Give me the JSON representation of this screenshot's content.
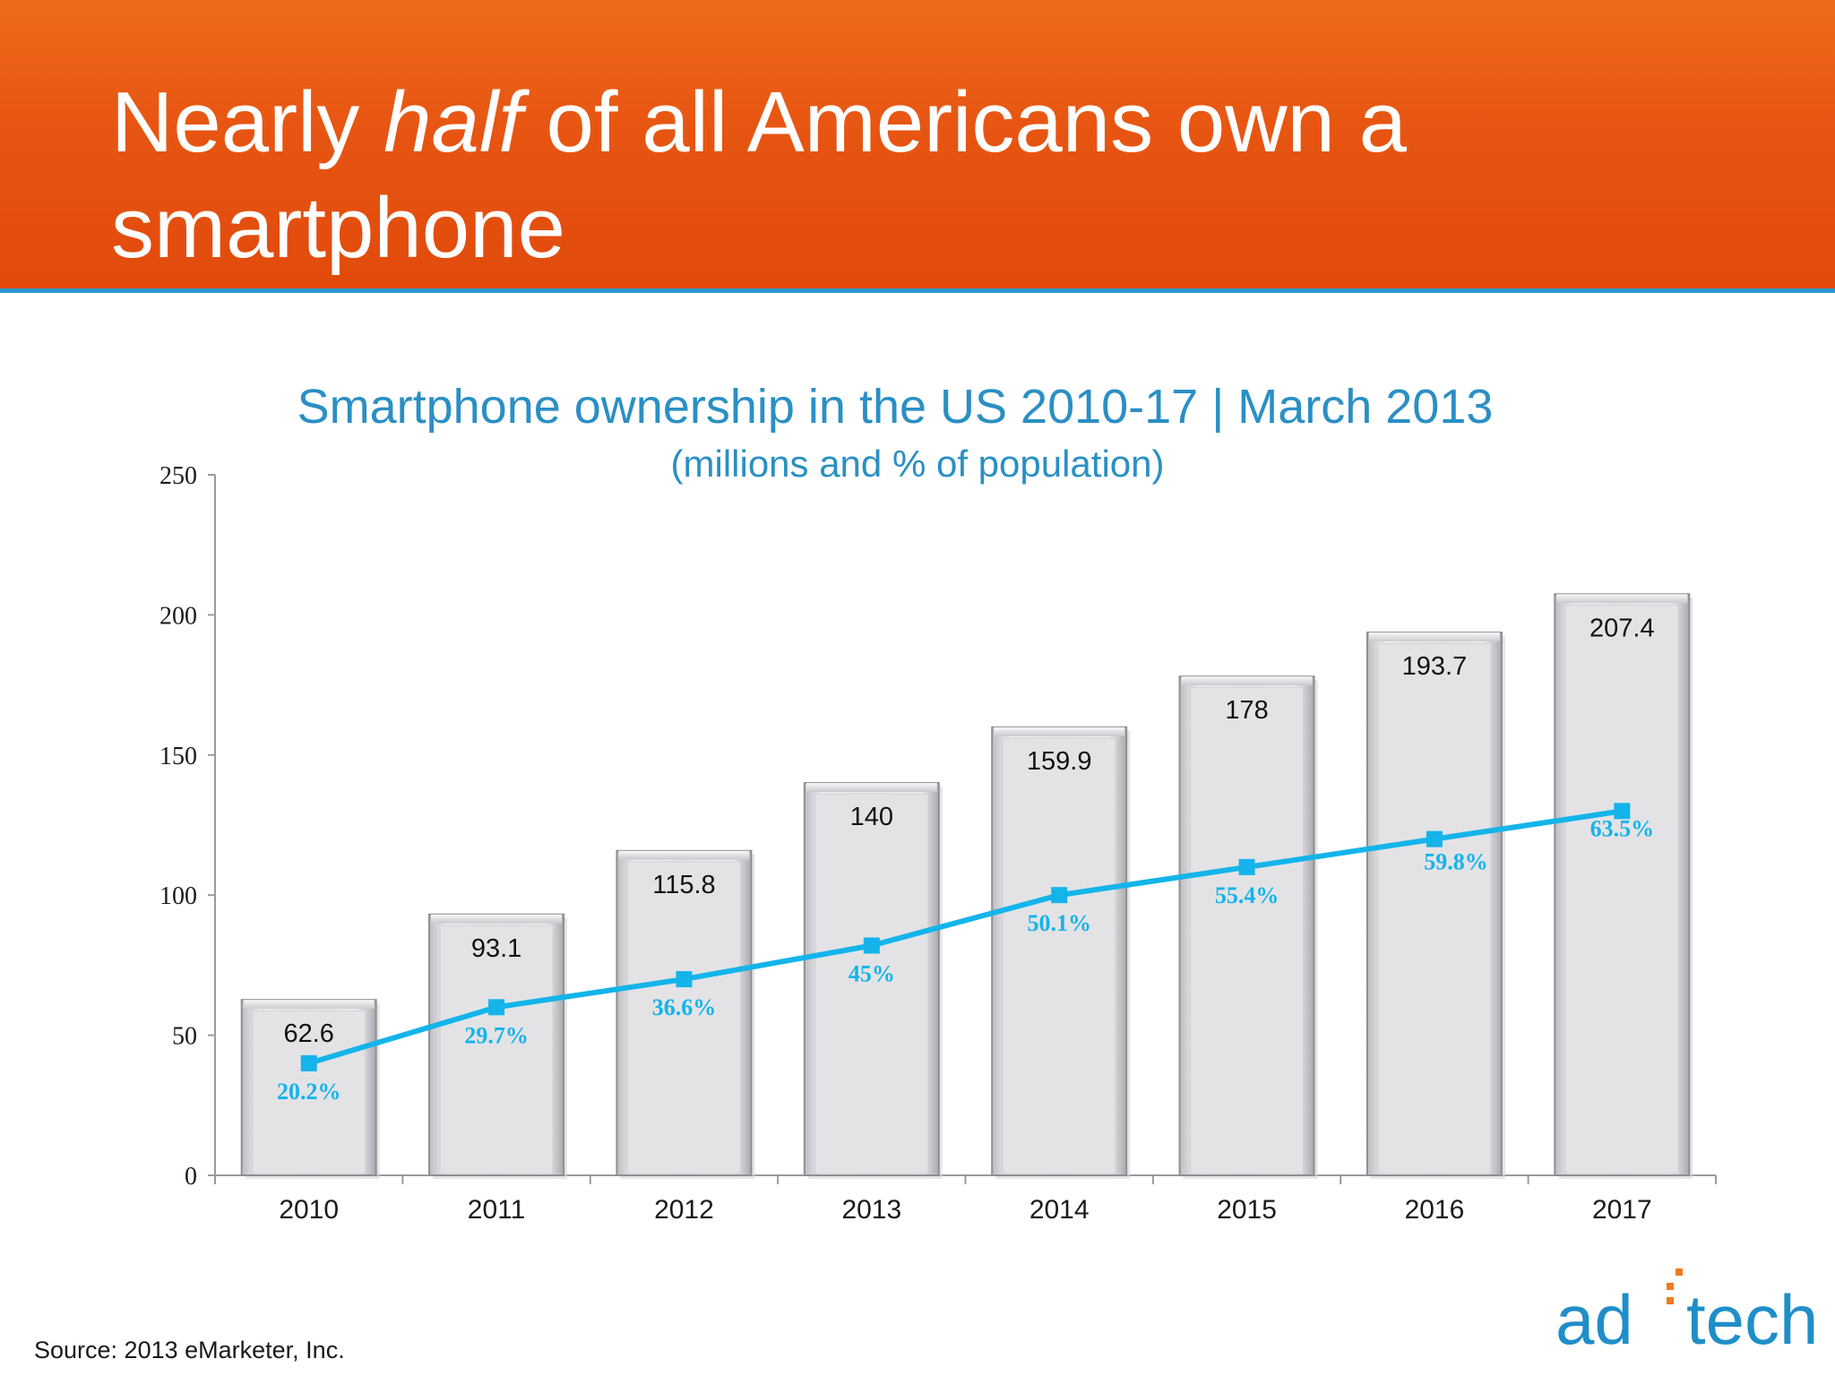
{
  "slide": {
    "title_pre": "Nearly ",
    "title_em": "half",
    "title_line1_post": " of all Americans own a",
    "title_line2": "smartphone"
  },
  "source": "Source: 2013 eMarketer, Inc.",
  "logo": {
    "text_left": "ad",
    "text_right": "tech",
    "name": "adtech-logo"
  },
  "colors": {
    "header": "#e75512",
    "header_rule": "#2a98d0",
    "title_blue": "#2a8fc4",
    "line": "#14b4ea",
    "bar_fill": "#e9e9ec",
    "bar_edge": "#9a9aa0",
    "logo_blue": "#1f8ec8",
    "logo_dot": "#f07a1e"
  },
  "chart_data": {
    "type": "bar",
    "title": "Smartphone ownership in the US 2010-17 | March 2013",
    "subtitle": "(millions and % of population)",
    "categories": [
      "2010",
      "2011",
      "2012",
      "2013",
      "2014",
      "2015",
      "2016",
      "2017"
    ],
    "series": [
      {
        "values": [
          62.6,
          93.1,
          115.8,
          140,
          159.9,
          178,
          193.7,
          207.4
        ],
        "labels": [
          "62.6",
          "93.1",
          "115.8",
          "140",
          "159.9",
          "178",
          "193.7",
          "207.4"
        ]
      }
    ],
    "line_series": {
      "type": "line",
      "percent_values": [
        20.2,
        29.7,
        36.6,
        45,
        50.1,
        55.4,
        59.8,
        63.5
      ],
      "plotted_on_left_axis": [
        40,
        60,
        70,
        82,
        100,
        110,
        120,
        130
      ],
      "labels": [
        "20.2%",
        "29.7%",
        "36.6%",
        "45%",
        "50.1%",
        "55.4%",
        "59.8%",
        "63.5%"
      ]
    },
    "ylim": [
      0,
      250
    ],
    "yticks": [
      "0",
      "50",
      "100",
      "150",
      "200",
      "250"
    ],
    "xlabel": "",
    "ylabel": "",
    "grid": false,
    "legend": "none"
  }
}
